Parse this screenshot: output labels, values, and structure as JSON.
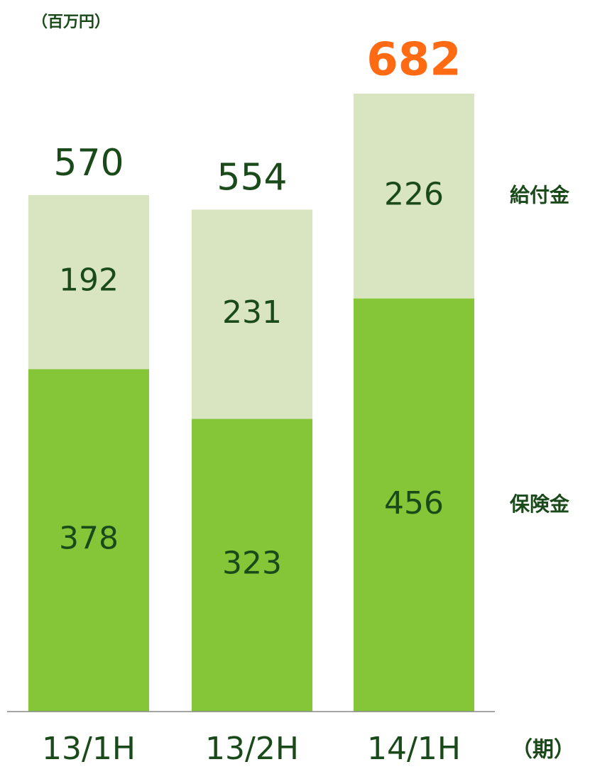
{
  "chart_data": {
    "type": "stacked_bar",
    "unit_label": "（百万円）",
    "x_label": "（期）",
    "categories": [
      "13/1H",
      "13/2H",
      "14/1H"
    ],
    "series": [
      {
        "name": "保険金",
        "color": "#84c637",
        "values": [
          378,
          323,
          456
        ]
      },
      {
        "name": "給付金",
        "color": "#d8e5c0",
        "values": [
          192,
          231,
          226
        ]
      }
    ],
    "totals": [
      570,
      554,
      682
    ],
    "total_colors": [
      "#1a4a1a",
      "#1a4a1a",
      "#ff6a13"
    ],
    "label_color": "#1a4a1a"
  }
}
